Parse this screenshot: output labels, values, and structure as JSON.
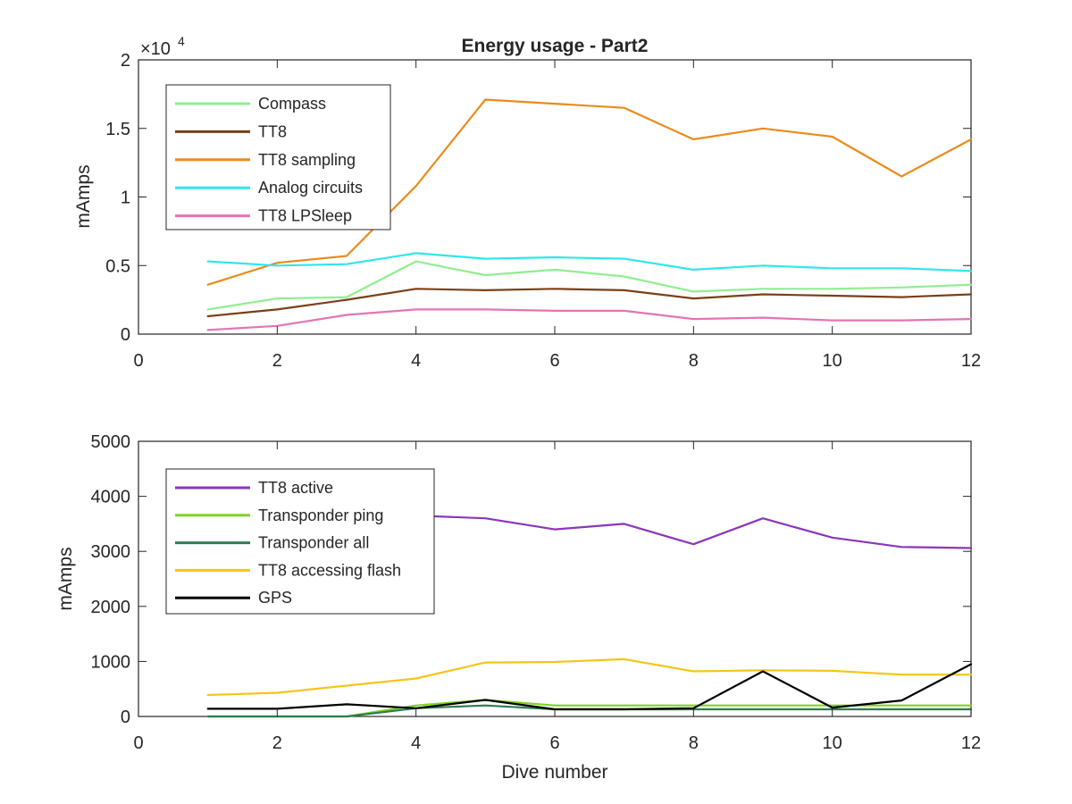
{
  "chart_data": [
    {
      "type": "line",
      "title": "Energy usage - Part2",
      "xlabel": "",
      "ylabel": "mAmps",
      "y_exponent_label": "×10",
      "y_exponent_power": "4",
      "xlim": [
        0,
        12
      ],
      "ylim": [
        0,
        20000
      ],
      "xticks": [
        0,
        2,
        4,
        6,
        8,
        10,
        12
      ],
      "xtick_labels": [
        "0",
        "2",
        "4",
        "6",
        "8",
        "10",
        "12"
      ],
      "yticks": [
        0,
        5000,
        10000,
        15000,
        20000
      ],
      "ytick_labels": [
        "0",
        "0.5",
        "1",
        "1.5",
        "2"
      ],
      "grid": false,
      "legend_position": "top-left",
      "x": [
        1,
        2,
        3,
        4,
        5,
        6,
        7,
        8,
        9,
        10,
        11,
        12
      ],
      "series": [
        {
          "name": "Compass",
          "color": "#90ee90",
          "values": [
            1800,
            2600,
            2700,
            5300,
            4300,
            4700,
            4200,
            3100,
            3300,
            3300,
            3400,
            3600
          ]
        },
        {
          "name": "TT8",
          "color": "#7b3f16",
          "values": [
            1300,
            1800,
            2500,
            3300,
            3200,
            3300,
            3200,
            2600,
            2900,
            2800,
            2700,
            2900
          ]
        },
        {
          "name": "TT8 sampling",
          "color": "#ea8b1d",
          "values": [
            3600,
            5200,
            5700,
            10800,
            17100,
            16800,
            16500,
            14200,
            15000,
            14400,
            11500,
            14200
          ]
        },
        {
          "name": "Analog circuits",
          "color": "#2fe6ec",
          "values": [
            5300,
            5000,
            5100,
            5900,
            5500,
            5600,
            5500,
            4700,
            5000,
            4800,
            4800,
            4600
          ]
        },
        {
          "name": "TT8 LPSleep",
          "color": "#e374b5",
          "values": [
            300,
            600,
            1400,
            1800,
            1800,
            1700,
            1700,
            1100,
            1200,
            1000,
            1000,
            1100
          ]
        }
      ]
    },
    {
      "type": "line",
      "title": "",
      "xlabel": "Dive number",
      "ylabel": "mAmps",
      "xlim": [
        0,
        12
      ],
      "ylim": [
        0,
        5000
      ],
      "xticks": [
        0,
        2,
        4,
        6,
        8,
        10,
        12
      ],
      "xtick_labels": [
        "0",
        "2",
        "4",
        "6",
        "8",
        "10",
        "12"
      ],
      "yticks": [
        0,
        1000,
        2000,
        3000,
        4000,
        5000
      ],
      "ytick_labels": [
        "0",
        "1000",
        "2000",
        "3000",
        "4000",
        "5000"
      ],
      "grid": false,
      "legend_position": "top-left",
      "x": [
        1,
        2,
        3,
        4,
        5,
        6,
        7,
        8,
        9,
        10,
        11,
        12
      ],
      "series": [
        {
          "name": "TT8 active",
          "color": "#8b36b8",
          "values": [
            3900,
            3900,
            3850,
            3650,
            3600,
            3400,
            3500,
            3130,
            3600,
            3250,
            3080,
            3060
          ]
        },
        {
          "name": "Transponder ping",
          "color": "#7ed321",
          "values": [
            0,
            0,
            0,
            200,
            300,
            200,
            200,
            200,
            200,
            200,
            200,
            200
          ]
        },
        {
          "name": "Transponder all",
          "color": "#2e7d4f",
          "values": [
            0,
            0,
            0,
            150,
            200,
            130,
            130,
            130,
            130,
            130,
            130,
            130
          ]
        },
        {
          "name": "TT8 accessing flash",
          "color": "#f5c518",
          "values": [
            390,
            430,
            560,
            690,
            980,
            990,
            1040,
            820,
            840,
            830,
            760,
            760
          ]
        },
        {
          "name": "GPS",
          "color": "#000000",
          "values": [
            140,
            140,
            220,
            150,
            300,
            130,
            130,
            150,
            820,
            160,
            290,
            950
          ]
        }
      ]
    }
  ]
}
